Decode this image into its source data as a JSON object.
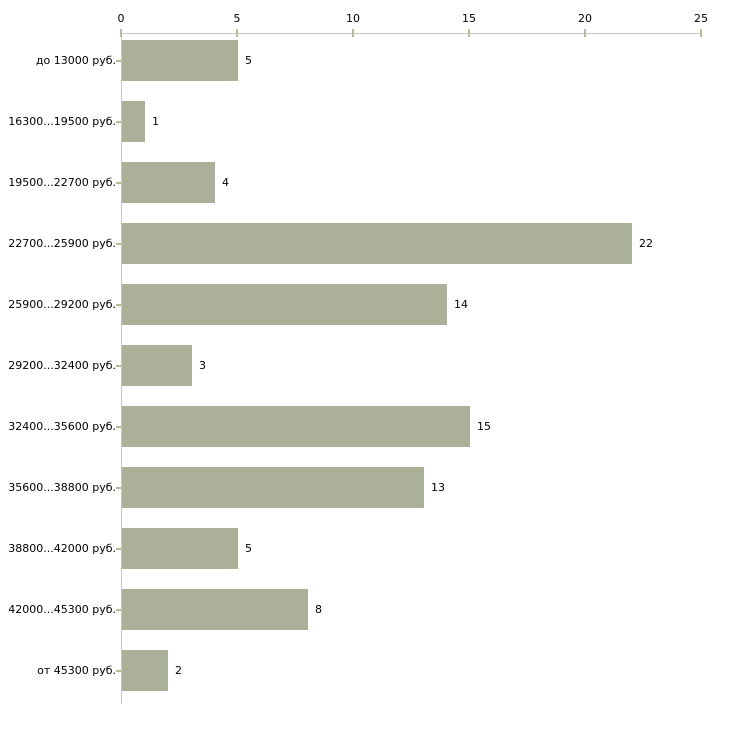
{
  "chart_data": {
    "type": "bar",
    "orientation": "horizontal",
    "title": "",
    "xlabel": "",
    "ylabel": "",
    "categories": [
      "до 13000 руб.",
      "16300...19500 руб.",
      "19500...22700 руб.",
      "22700...25900 руб.",
      "25900...29200 руб.",
      "29200...32400 руб.",
      "32400...35600 руб.",
      "35600...38800 руб.",
      "38800...42000 руб.",
      "42000...45300 руб.",
      "от 45300 руб."
    ],
    "values": [
      5,
      1,
      4,
      22,
      14,
      3,
      15,
      13,
      5,
      8,
      2
    ],
    "value_labels": [
      "5",
      "1",
      "4",
      "22",
      "14",
      "3",
      "15",
      "13",
      "5",
      "8",
      "2"
    ],
    "xlim": [
      0,
      25
    ],
    "x_ticks": [
      0,
      5,
      10,
      15,
      20,
      25
    ],
    "x_tick_labels": [
      "0",
      "5",
      "10",
      "15",
      "20",
      "25"
    ],
    "axis_position": "top",
    "grid": false,
    "legend": false,
    "colors": {
      "bar_fill": "#abb199",
      "axis_line": "#c8c8c8",
      "tick_mark": "#b8bc92",
      "text": "#000000",
      "background": "#ffffff"
    }
  }
}
